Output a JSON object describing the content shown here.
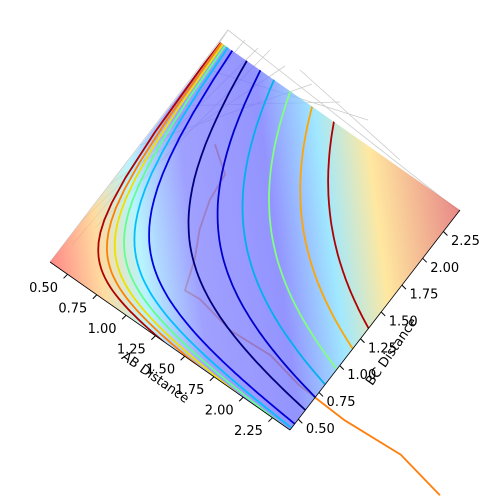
{
  "chart_data": {
    "type": "surface3d",
    "xlabel": "AB Distance",
    "ylabel": "BC Distance",
    "xlim": [
      0.35,
      2.4
    ],
    "ylim": [
      0.4,
      2.45
    ],
    "xticks": [
      {
        "value": 0.5,
        "label": "0.50"
      },
      0.75,
      {
        "value": 1.0,
        "label": "1.00"
      },
      1.25,
      {
        "value": 1.5,
        "label": "1.50"
      },
      1.75,
      {
        "value": 2.0,
        "label": "2.00"
      },
      2.25
    ],
    "yticks": [
      {
        "value": 0.5,
        "label": "0.50"
      },
      0.75,
      {
        "value": 1.0,
        "label": "1.00"
      },
      1.25,
      {
        "value": 1.5,
        "label": "1.50"
      },
      1.75,
      {
        "value": 2.0,
        "label": "2.00"
      },
      2.25
    ],
    "series": [
      {
        "color": "#ff7f0e",
        "x": [
          0.76,
          0.945,
          0.97,
          1.04,
          1.14,
          1.22,
          1.34,
          1.64,
          1.97,
          2.26,
          2.66,
          3.12,
          3.51
        ],
        "values": [
          1.81,
          1.67,
          1.45,
          1.23,
          1.03,
          0.8,
          0.81,
          0.75,
          0.77,
          0.71,
          0.69,
          0.72,
          0.64
        ]
      }
    ]
  }
}
